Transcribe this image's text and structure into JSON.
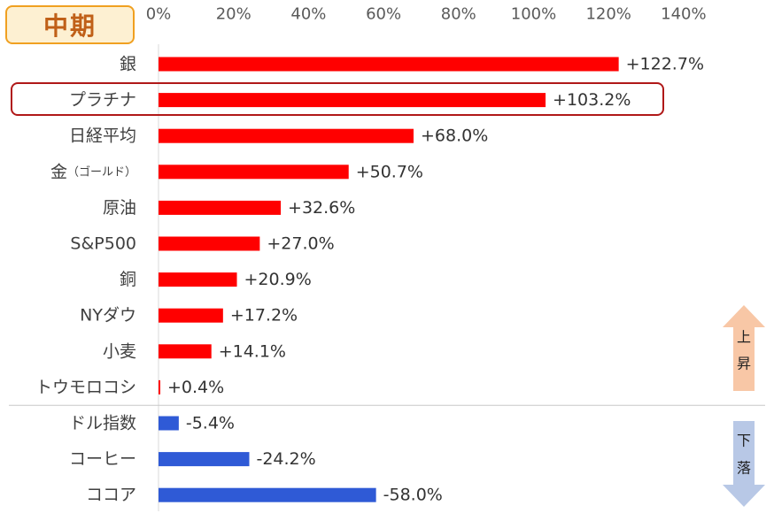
{
  "badge": {
    "label": "中期"
  },
  "highlight_category": "プラチナ",
  "arrows": {
    "up": {
      "label_1": "上",
      "label_2": "昇",
      "color": "#f8c7a6"
    },
    "down": {
      "label_1": "下",
      "label_2": "落",
      "color": "#b8c8e6"
    }
  },
  "colors": {
    "positive": "#ff0000",
    "negative": "#2f5ad6",
    "highlight_border": "#b01818"
  },
  "chart_data": {
    "type": "bar",
    "orientation": "horizontal",
    "xlim": [
      0,
      140
    ],
    "x_ticks": [
      "0%",
      "20%",
      "40%",
      "60%",
      "80%",
      "100%",
      "120%",
      "140%"
    ],
    "grid": false,
    "items": [
      {
        "label": "銀",
        "value": 122.7,
        "value_label": "+122.7%"
      },
      {
        "label": "プラチナ",
        "value": 103.2,
        "value_label": "+103.2%"
      },
      {
        "label": "日経平均",
        "value": 68.0,
        "value_label": "+68.0%"
      },
      {
        "label": "金",
        "label_note": "（ゴールド）",
        "value": 50.7,
        "value_label": "+50.7%"
      },
      {
        "label": "原油",
        "value": 32.6,
        "value_label": "+32.6%"
      },
      {
        "label": "S&P500",
        "value": 27.0,
        "value_label": "+27.0%"
      },
      {
        "label": "銅",
        "value": 20.9,
        "value_label": "+20.9%"
      },
      {
        "label": "NYダウ",
        "value": 17.2,
        "value_label": "+17.2%"
      },
      {
        "label": "小麦",
        "value": 14.1,
        "value_label": "+14.1%"
      },
      {
        "label": "トウモロコシ",
        "value": 0.4,
        "value_label": "+0.4%"
      },
      {
        "label": "ドル指数",
        "value": -5.4,
        "value_label": "-5.4%"
      },
      {
        "label": "コーヒー",
        "value": -24.2,
        "value_label": "-24.2%"
      },
      {
        "label": "ココア",
        "value": -58.0,
        "value_label": "-58.0%"
      }
    ]
  }
}
